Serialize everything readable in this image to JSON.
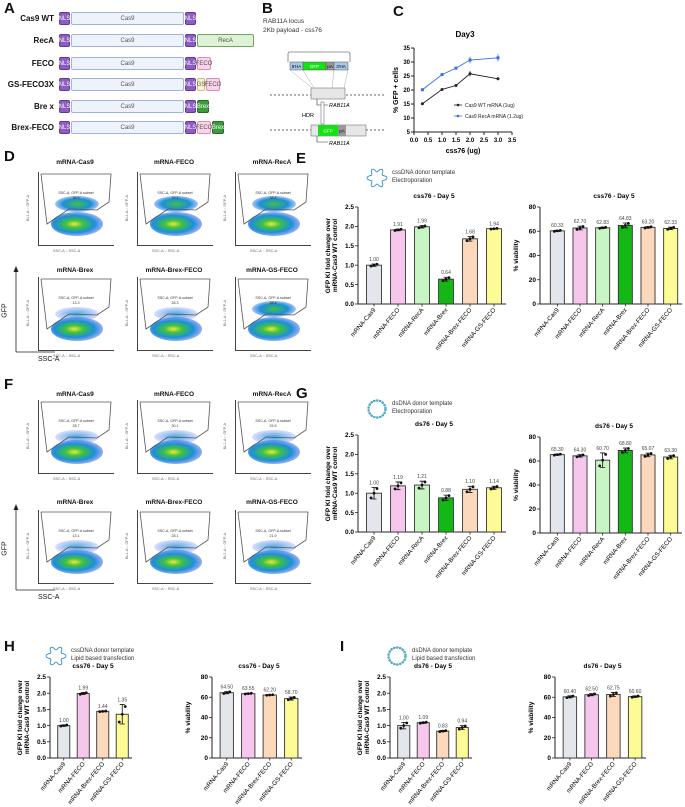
{
  "panels": {
    "A": "A",
    "B": "B",
    "C": "C",
    "D": "D",
    "E": "E",
    "F": "F",
    "G": "G",
    "H": "H",
    "I": "I"
  },
  "construct_colors": {
    "NLS": "#8e5cc4",
    "Cas9": "#edf2fb",
    "RecA": "#ddf2d6",
    "FECO": "#f9d3ea",
    "GS": "#f7f2cf",
    "Brex": "#3a9c3a"
  },
  "constructs": [
    {
      "name": "Cas9 WT",
      "segments": [
        {
          "t": "NLS",
          "label": "NLS"
        },
        {
          "t": "Cas9",
          "label": "Cas9"
        },
        {
          "t": "NLS",
          "label": "NLS"
        }
      ]
    },
    {
      "name": "RecA",
      "segments": [
        {
          "t": "NLS",
          "label": "NLS"
        },
        {
          "t": "Cas9",
          "label": "Cas9"
        },
        {
          "t": "NLS",
          "label": "NLS"
        },
        {
          "t": "RecA",
          "label": "RecA"
        }
      ]
    },
    {
      "name": "FECO",
      "segments": [
        {
          "t": "NLS",
          "label": "NLS"
        },
        {
          "t": "Cas9",
          "label": "Cas9"
        },
        {
          "t": "NLS",
          "label": "NLS"
        },
        {
          "t": "FECO",
          "label": "FECO"
        }
      ]
    },
    {
      "name": "GS-FECO3X",
      "segments": [
        {
          "t": "NLS",
          "label": "NLS"
        },
        {
          "t": "Cas9",
          "label": "Cas9"
        },
        {
          "t": "NLS",
          "label": "NLS"
        },
        {
          "t": "GS",
          "label": "GS"
        },
        {
          "t": "FECO",
          "label": "FECO"
        }
      ]
    },
    {
      "name": "Bre x",
      "segments": [
        {
          "t": "NLS",
          "label": "NLS"
        },
        {
          "t": "Cas9",
          "label": "Cas9"
        },
        {
          "t": "NLS",
          "label": "NLS"
        },
        {
          "t": "Brex",
          "label": "Brex"
        }
      ]
    },
    {
      "name": "Brex-FECO",
      "segments": [
        {
          "t": "NLS",
          "label": "NLS"
        },
        {
          "t": "Cas9",
          "label": "Cas9"
        },
        {
          "t": "NLS",
          "label": "NLS"
        },
        {
          "t": "FECO",
          "label": "FECO"
        },
        {
          "t": "Brex",
          "label": "Brex"
        }
      ]
    }
  ],
  "locus": {
    "line1": "RAB11A locus",
    "line2": "2Kb payload - css76",
    "donor": [
      "5'HA",
      "GFP",
      "pA",
      "3'HA"
    ],
    "gene": "RAB11A",
    "hdr": "HDR",
    "edited": [
      "GFP",
      "pA"
    ]
  },
  "flow": {
    "gate_label": "SSC-A, GFP-A subset",
    "x_axis": "SSC-A",
    "y_axis": "GFP",
    "plot_xlabel": "SSC-A :: SSC-A",
    "plot_ylabel": "BL1-A :: GFP-A",
    "D": [
      {
        "title": "mRNA-Cas9",
        "value": "38.5"
      },
      {
        "title": "mRNA-FECO",
        "value": "39.5"
      },
      {
        "title": "mRNA-RecA",
        "value": "38.8"
      },
      {
        "title": "mRNA-Brex",
        "value": "13.3"
      },
      {
        "title": "mRNA-Brex-FECO",
        "value": "28.3"
      },
      {
        "title": "mRNA-GS-FECO",
        "value": "38.4"
      }
    ],
    "F": [
      {
        "title": "mRNA-Cas9",
        "value": "28.7"
      },
      {
        "title": "mRNA-FECO",
        "value": "30.1"
      },
      {
        "title": "mRNA-RecA",
        "value": "29.9"
      },
      {
        "title": "mRNA-Brex",
        "value": "13.1"
      },
      {
        "title": "mRNA-Brex-FECO",
        "value": "28.1"
      },
      {
        "title": "mRNA-GS-FECO",
        "value": "21.9"
      }
    ]
  },
  "templates": {
    "E": [
      "cssDNA donor template",
      "Electroporation"
    ],
    "G": [
      "dsDNA donor template",
      "Electroporation"
    ],
    "H": [
      "cssDNA donor template",
      "Lipid based transfection"
    ],
    "I": [
      "dsDNA donor template",
      "Lipid based transfection"
    ]
  },
  "chart_data": [
    {
      "id": "C",
      "type": "line",
      "title": "Day3",
      "xlabel": "css76 (ug)",
      "ylabel": "% GFP + cells",
      "xlim": [
        0,
        3.5
      ],
      "xticks": [
        0.0,
        0.5,
        1.0,
        1.5,
        2.0,
        2.5,
        3.0,
        3.5
      ],
      "ylim": [
        5,
        35
      ],
      "yticks": [
        5,
        10,
        15,
        20,
        25,
        30,
        35
      ],
      "legend": "bottom-right",
      "grid": false,
      "series": [
        {
          "name": "Cas9 WT mRNA (1ug)",
          "color": "#222222",
          "x": [
            0.3,
            1.0,
            1.5,
            2.0,
            3.0
          ],
          "y": [
            15.1,
            20.2,
            21.6,
            25.8,
            24.0
          ],
          "err": [
            0.3,
            0.3,
            0.5,
            1.0,
            0.5
          ]
        },
        {
          "name": "Cas9 RecA mRNA (1.2ug)",
          "color": "#3b6fe0",
          "x": [
            0.3,
            1.0,
            1.5,
            2.0,
            3.0
          ],
          "y": [
            20.1,
            25.5,
            27.8,
            30.7,
            31.5
          ],
          "err": [
            0.5,
            0.6,
            0.4,
            1.2,
            1.3
          ]
        }
      ]
    },
    {
      "id": "E1",
      "type": "bar",
      "title": "css76 - Day 5",
      "ylabel": "GFP KI fold change over mRNA-Cas9 WT control",
      "ylim": [
        0,
        2.5
      ],
      "yticks": [
        "0.0",
        "0.5",
        "1.0",
        "1.5",
        "2.0",
        "2.5"
      ],
      "categories": [
        "mRNA-Cas9",
        "mRNA-FECO",
        "mRNA-RecA",
        "mRNA-Brex",
        "mRNA-Brex-FECO",
        "mRNA-GS-FECO"
      ],
      "values": [
        1.0,
        1.91,
        1.99,
        0.64,
        1.68,
        1.94
      ],
      "err": [
        0.03,
        0.02,
        0.03,
        0.05,
        0.06,
        0.01
      ],
      "colors": [
        "#e3e6ea",
        "#f7c6ec",
        "#c8f5c4",
        "#14b814",
        "#fcd9bc",
        "#fdfb96"
      ]
    },
    {
      "id": "E2",
      "type": "bar",
      "title": "css76 - Day 5",
      "ylabel": "% viability",
      "ylim": [
        0,
        80
      ],
      "yticks": [
        "0",
        "20",
        "40",
        "60",
        "80"
      ],
      "categories": [
        "mRNA-Cas9",
        "mRNA-FECO",
        "mRNA-RecA",
        "mRNA-Brex",
        "mRNA-Brex-FECO",
        "mRNA-GS-FECO"
      ],
      "values": [
        60.33,
        62.7,
        62.83,
        64.83,
        63.2,
        62.33
      ],
      "err": [
        0.5,
        1.5,
        0.5,
        2.0,
        0.6,
        1.0
      ],
      "colors": [
        "#e3e6ea",
        "#f7c6ec",
        "#c8f5c4",
        "#14b814",
        "#fcd9bc",
        "#fdfb96"
      ]
    },
    {
      "id": "G1",
      "type": "bar",
      "title": "ds76 - Day 5",
      "ylabel": "GFP KI fold change over mRNA-Cas9 WT control",
      "ylim": [
        0,
        2.5
      ],
      "yticks": [
        "0.0",
        "0.5",
        "1.0",
        "1.5",
        "2.0",
        "2.5"
      ],
      "categories": [
        "mRNA-Cas9",
        "mRNA-FECO",
        "mRNA-RecA",
        "mRNA-Brex",
        "mRNA-Brex-FECO",
        "mRNA-GS-FECO"
      ],
      "values": [
        1.0,
        1.19,
        1.21,
        0.88,
        1.1,
        1.14
      ],
      "err": [
        0.15,
        0.1,
        0.1,
        0.07,
        0.08,
        0.04
      ],
      "colors": [
        "#e3e6ea",
        "#f7c6ec",
        "#c8f5c4",
        "#14b814",
        "#fcd9bc",
        "#fdfb96"
      ]
    },
    {
      "id": "G2",
      "type": "bar",
      "title": "ds76 - Day 5",
      "ylabel": "% viability",
      "ylim": [
        0,
        80
      ],
      "yticks": [
        "0",
        "20",
        "40",
        "60",
        "80"
      ],
      "categories": [
        "mRNA-Cas9",
        "mRNA-FECO",
        "mRNA-RecA",
        "mRNA-Brex",
        "mRNA-Brex-FECO",
        "mRNA-GS-FECO"
      ],
      "values": [
        65.3,
        64.3,
        60.7,
        68.8,
        65.07,
        63.3
      ],
      "err": [
        0.5,
        1.0,
        6.0,
        2.0,
        1.5,
        1.5
      ],
      "colors": [
        "#e3e6ea",
        "#f7c6ec",
        "#c8f5c4",
        "#14b814",
        "#fcd9bc",
        "#fdfb96"
      ]
    },
    {
      "id": "H1",
      "type": "bar",
      "title": "css76 - Day 5",
      "ylabel": "GFP KI fold change over mRNA-Cas9 WT control",
      "ylim": [
        0,
        2.5
      ],
      "yticks": [
        "0.0",
        "0.5",
        "1.0",
        "1.5",
        "2.0",
        "2.5"
      ],
      "categories": [
        "mRNA-Cas9",
        "mRNA-FECO",
        "mRNA-Brex-FECO",
        "mRNA-GS-FECO"
      ],
      "values": [
        1.0,
        1.99,
        1.44,
        1.35
      ],
      "err": [
        0.02,
        0.03,
        0.01,
        0.3
      ],
      "colors": [
        "#e3e6ea",
        "#f7c6ec",
        "#fcd9bc",
        "#fdfb96"
      ]
    },
    {
      "id": "H2",
      "type": "bar",
      "title": "css76 - Day 5",
      "ylabel": "% viability",
      "ylim": [
        0,
        80
      ],
      "yticks": [
        "0",
        "20",
        "40",
        "60",
        "80"
      ],
      "categories": [
        "mRNA-Cas9",
        "mRNA-FECO",
        "mRNA-Brex-FECO",
        "mRNA-GS-FECO"
      ],
      "values": [
        64.5,
        63.55,
        62.2,
        58.7
      ],
      "err": [
        1.0,
        0.5,
        0.3,
        1.5
      ],
      "colors": [
        "#e3e6ea",
        "#f7c6ec",
        "#fcd9bc",
        "#fdfb96"
      ]
    },
    {
      "id": "I1",
      "type": "bar",
      "title": "ds76 - Day 5",
      "ylabel": "GFP KI fold change over mRNA-Cas9 WT control",
      "ylim": [
        0,
        2.5
      ],
      "yticks": [
        "0.0",
        "0.5",
        "1.0",
        "1.5",
        "2.0",
        "2.5"
      ],
      "categories": [
        "mRNA-Cas9",
        "mRNA-FECO",
        "mRNA-Brex-FECO",
        "mRNA-GS-FECO"
      ],
      "values": [
        1.0,
        1.09,
        0.83,
        0.94
      ],
      "err": [
        0.1,
        0.02,
        0.02,
        0.06
      ],
      "colors": [
        "#e3e6ea",
        "#f7c6ec",
        "#fcd9bc",
        "#fdfb96"
      ]
    },
    {
      "id": "I2",
      "type": "bar",
      "title": "ds76 - Day 5",
      "ylabel": "% viability",
      "ylim": [
        0,
        80
      ],
      "yticks": [
        "0",
        "20",
        "40",
        "60",
        "80"
      ],
      "categories": [
        "mRNA-Cas9",
        "mRNA-FECO",
        "mRNA-Brex-FECO",
        "mRNA-GS-FECO"
      ],
      "values": [
        60.4,
        62.5,
        62.75,
        60.6
      ],
      "err": [
        1.0,
        1.0,
        2.0,
        0.7
      ],
      "colors": [
        "#e3e6ea",
        "#f7c6ec",
        "#fcd9bc",
        "#fdfb96"
      ]
    }
  ]
}
